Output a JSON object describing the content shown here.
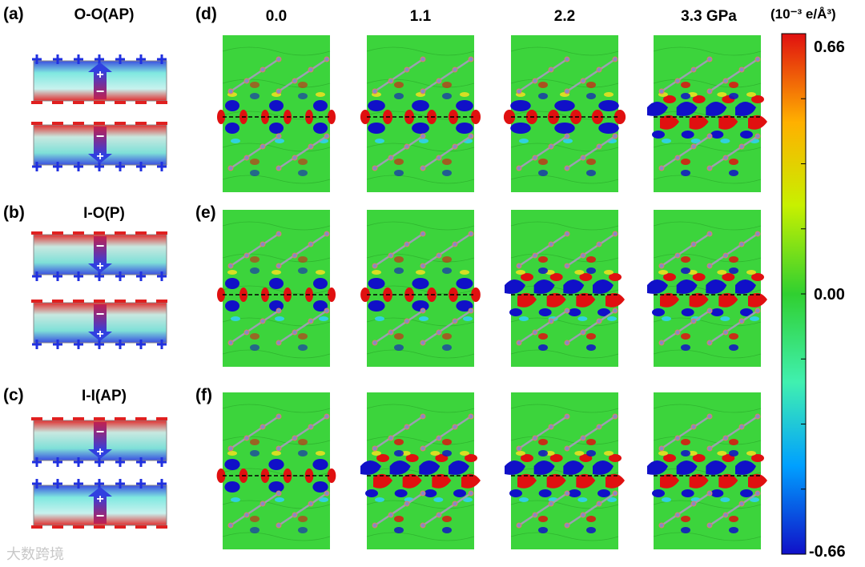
{
  "panels": {
    "a": {
      "label": "(a)",
      "title": "O-O(AP)"
    },
    "b": {
      "label": "(b)",
      "title": "I-O(P)"
    },
    "c": {
      "label": "(c)",
      "title": "I-I(AP)"
    },
    "d": {
      "label": "(d)"
    },
    "e": {
      "label": "(e)"
    },
    "f": {
      "label": "(f)"
    }
  },
  "pressure_headers": [
    "0.0",
    "1.1",
    "2.2",
    "3.3 GPa"
  ],
  "colorbar": {
    "unit": "(10⁻³ e/Å³)",
    "max": "0.66",
    "mid": "0.00",
    "min": "-0.66",
    "colors": [
      "#1010c8",
      "#00a0ff",
      "#40f0b0",
      "#30d030",
      "#c8f000",
      "#ffb000",
      "#e01010"
    ]
  },
  "watermark": "大数跨境"
}
